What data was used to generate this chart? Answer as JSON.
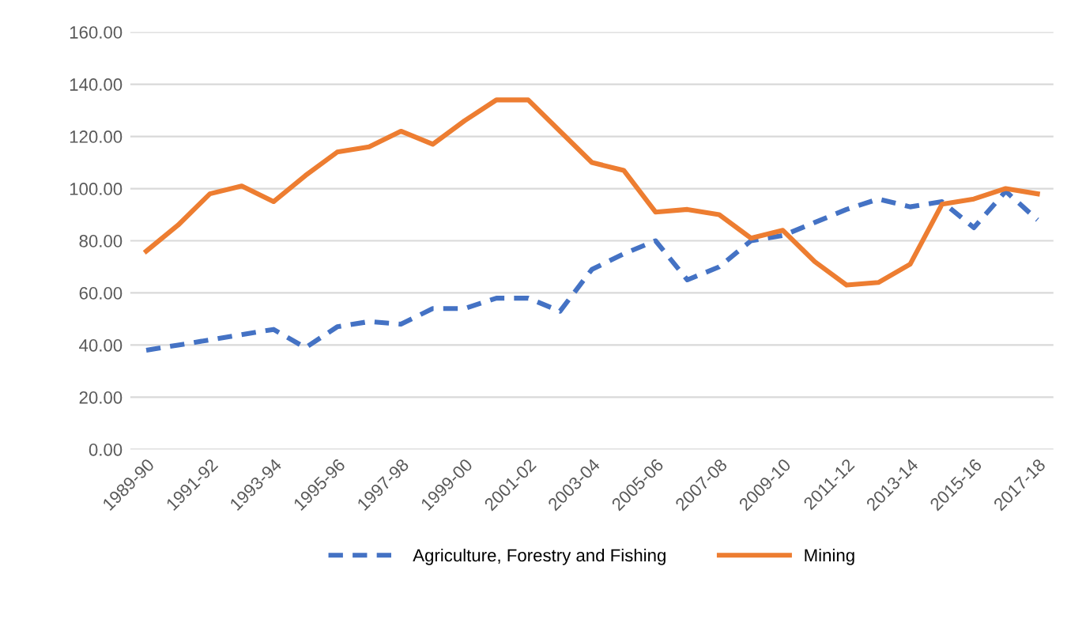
{
  "chart_data": {
    "type": "line",
    "categories": [
      "1989-90",
      null,
      "1991-92",
      null,
      "1993-94",
      null,
      "1995-96",
      null,
      "1997-98",
      null,
      "1999-00",
      null,
      "2001-02",
      null,
      "2003-04",
      null,
      "2005-06",
      null,
      "2007-08",
      null,
      "2009-10",
      null,
      "2011-12",
      null,
      "2013-14",
      null,
      "2015-16",
      null,
      "2017-18"
    ],
    "series": [
      {
        "name": "Agriculture, Forestry and Fishing",
        "color": "#4472c4",
        "line_style": "dashed",
        "values": [
          38,
          40,
          42,
          44,
          46,
          39,
          47,
          49,
          48,
          54,
          54,
          58,
          58,
          53,
          69,
          75,
          80,
          65,
          70,
          80,
          82,
          87,
          92,
          96,
          93,
          95,
          85,
          99,
          88
        ]
      },
      {
        "name": "Mining",
        "color": "#ed7d31",
        "line_style": "solid",
        "values": [
          76,
          86,
          98,
          101,
          95,
          105,
          114,
          116,
          122,
          117,
          126,
          134,
          134,
          122,
          110,
          107,
          91,
          92,
          90,
          81,
          84,
          72,
          63,
          64,
          71,
          94,
          96,
          100,
          98
        ]
      }
    ],
    "ylim": [
      0,
      160
    ],
    "yticks": [
      {
        "value": 0,
        "label": "0.00"
      },
      {
        "value": 20,
        "label": "20.00"
      },
      {
        "value": 40,
        "label": "40.00"
      },
      {
        "value": 60,
        "label": "60.00"
      },
      {
        "value": 80,
        "label": "80.00"
      },
      {
        "value": 100,
        "label": "100.00"
      },
      {
        "value": 120,
        "label": "120.00"
      },
      {
        "value": 140,
        "label": "140.00"
      },
      {
        "value": 160,
        "label": "160.00"
      }
    ],
    "grid": "y",
    "legend": "bottom",
    "marker": "none"
  }
}
